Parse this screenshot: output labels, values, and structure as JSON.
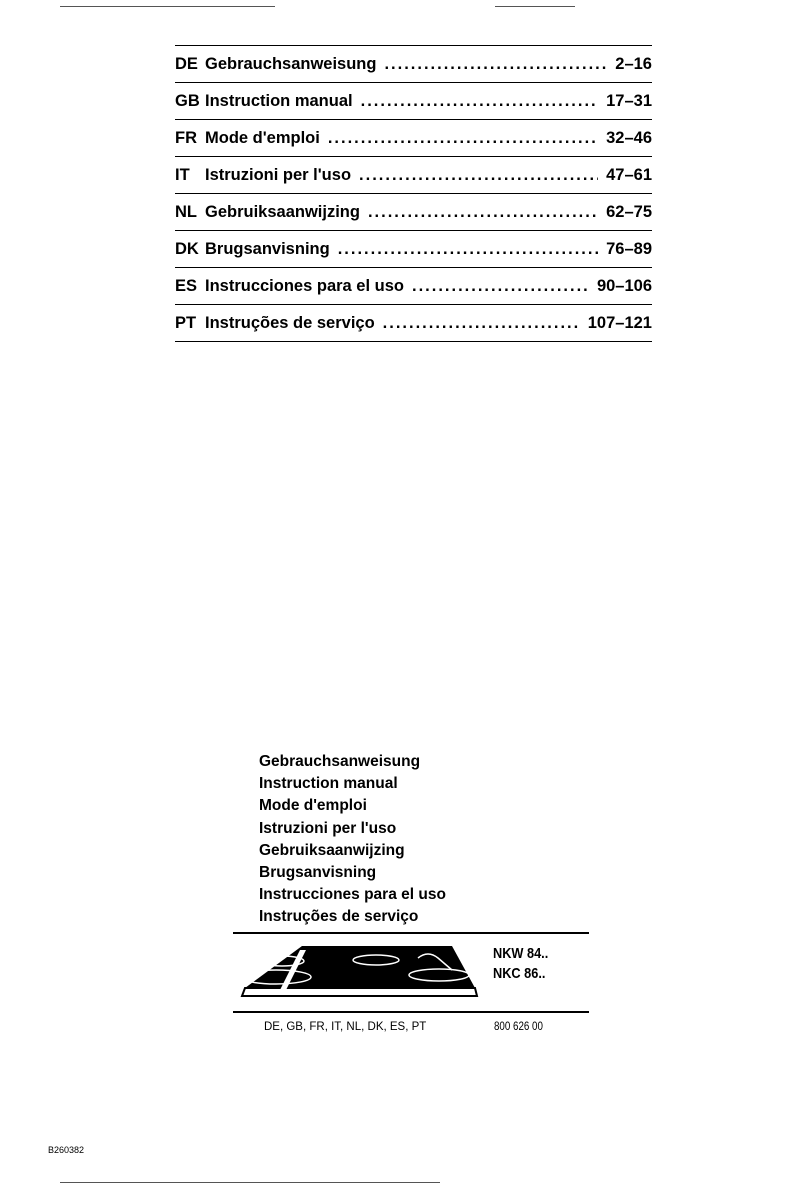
{
  "toc": [
    {
      "code": "DE",
      "title": "Gebrauchsanweisung",
      "pages": "2–16"
    },
    {
      "code": "GB",
      "title": "Instruction manual",
      "pages": "17–31"
    },
    {
      "code": "FR",
      "title": "Mode  d'emploi",
      "pages": "32–46"
    },
    {
      "code": "IT",
      "title": "Istruzioni per l'uso",
      "pages": "47–61"
    },
    {
      "code": "NL",
      "title": "Gebruiksaanwijzing",
      "pages": "62–75"
    },
    {
      "code": "DK",
      "title": "Brugsanvisning",
      "pages": "76–89"
    },
    {
      "code": "ES",
      "title": "Instrucciones para el uso",
      "pages": "90–106"
    },
    {
      "code": "PT",
      "title": "Instruções de serviço",
      "pages": "107–121"
    }
  ],
  "cover_titles": [
    "Gebrauchsanweisung",
    "Instruction manual",
    "Mode  d'emploi",
    "Istruzioni per l'uso",
    "Gebruiksaanwijzing",
    "Brugsanvisning",
    "Instrucciones para el uso",
    "Instruções de serviço"
  ],
  "models": [
    "NKW 84..",
    "NKC 86.."
  ],
  "languages": "DE, GB, FR, IT, NL, DK, ES, PT",
  "part_number": "800 626 00",
  "doc_code": "B260382"
}
